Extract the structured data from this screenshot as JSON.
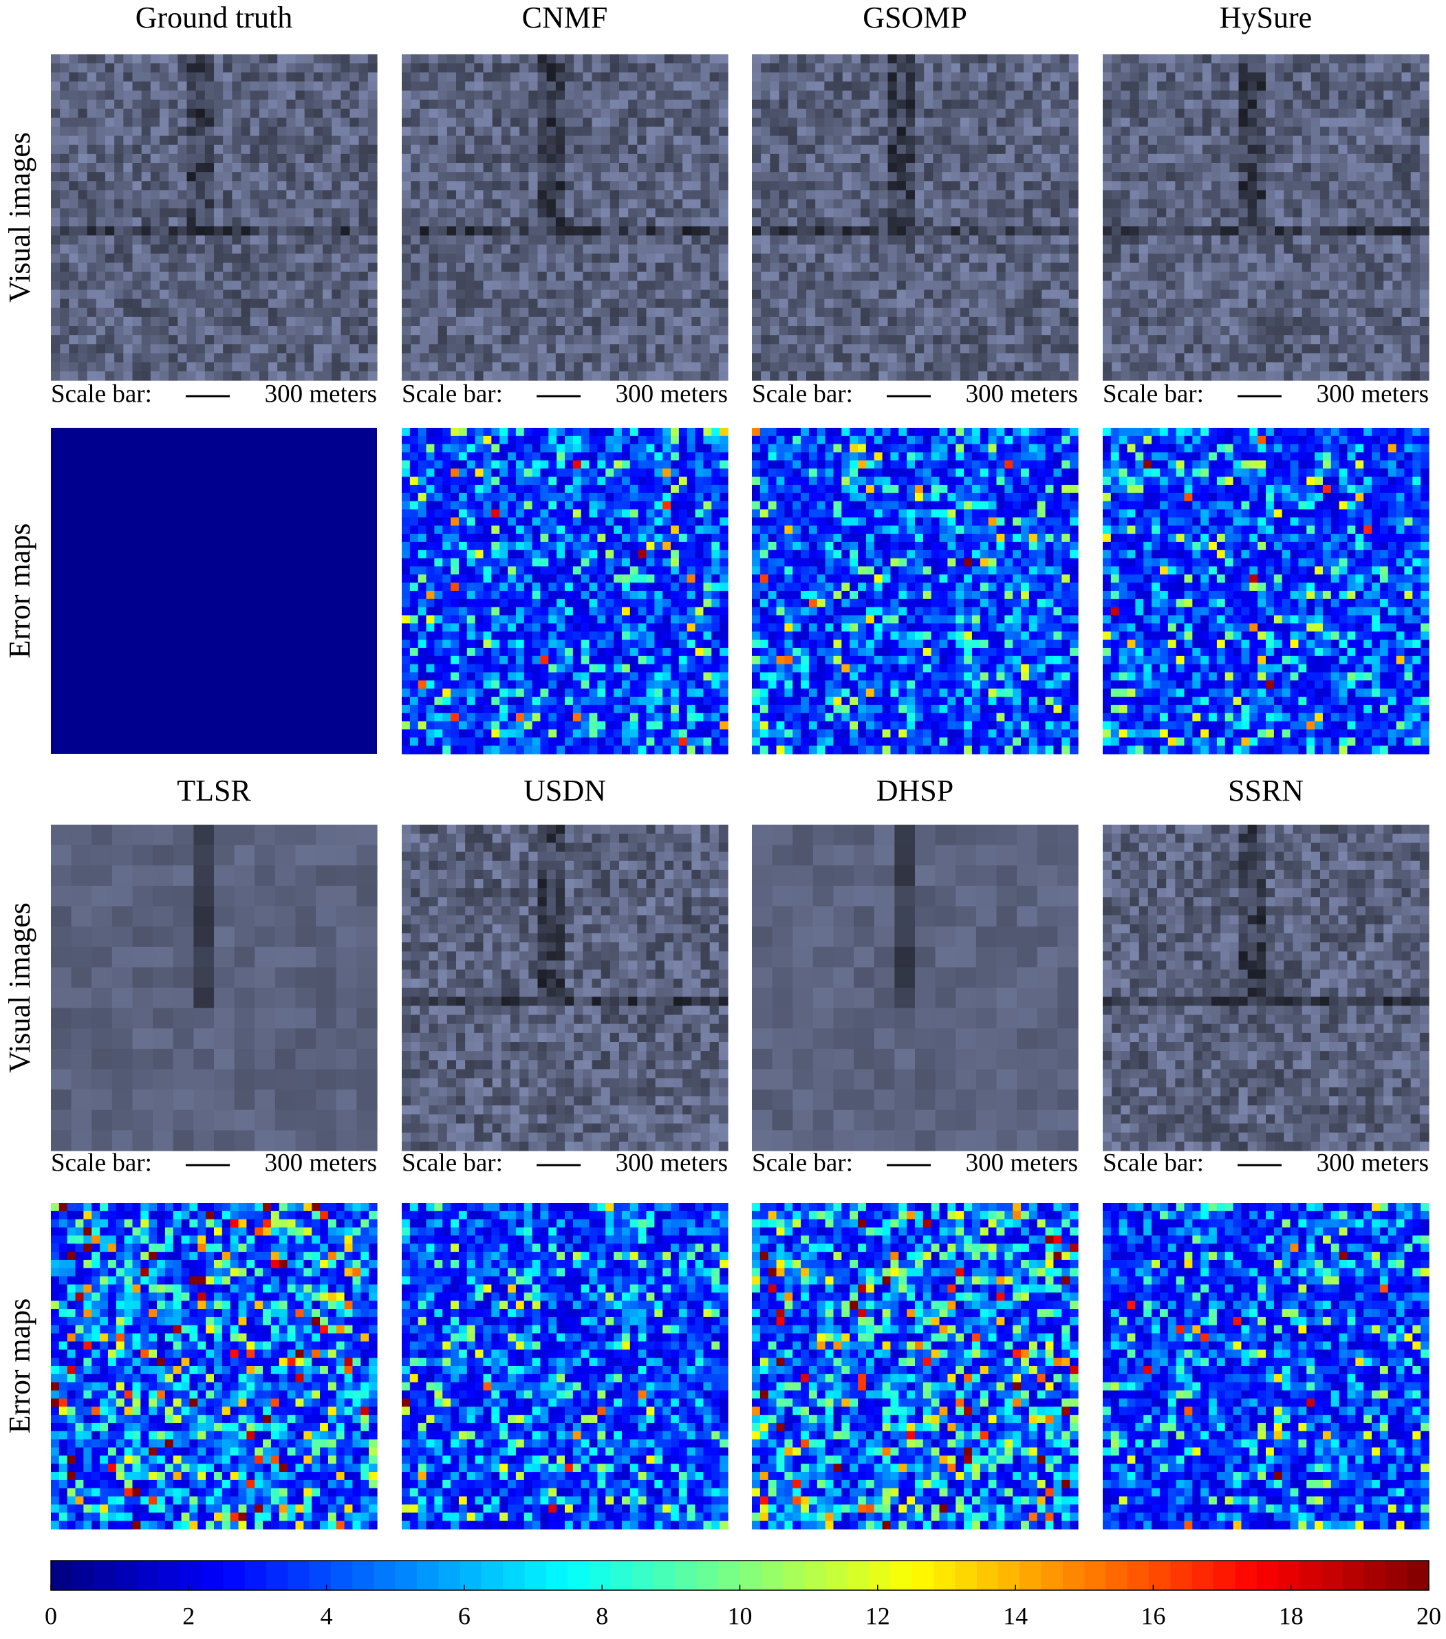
{
  "panels": [
    {
      "title": "Ground truth"
    },
    {
      "title": "CNMF"
    },
    {
      "title": "GSOMP"
    },
    {
      "title": "HySure"
    },
    {
      "title": "TLSR"
    },
    {
      "title": "USDN"
    },
    {
      "title": "DHSP"
    },
    {
      "title": "SSRN"
    }
  ],
  "row_labels": [
    "Visual images",
    "Error maps"
  ],
  "scale_bar": {
    "prefix": "Scale bar:",
    "length": "300 meters"
  },
  "colorbar": {
    "lim": [
      0,
      20
    ],
    "ticks": [
      0,
      2,
      4,
      6,
      8,
      10,
      12,
      14,
      16,
      18,
      20
    ]
  }
}
